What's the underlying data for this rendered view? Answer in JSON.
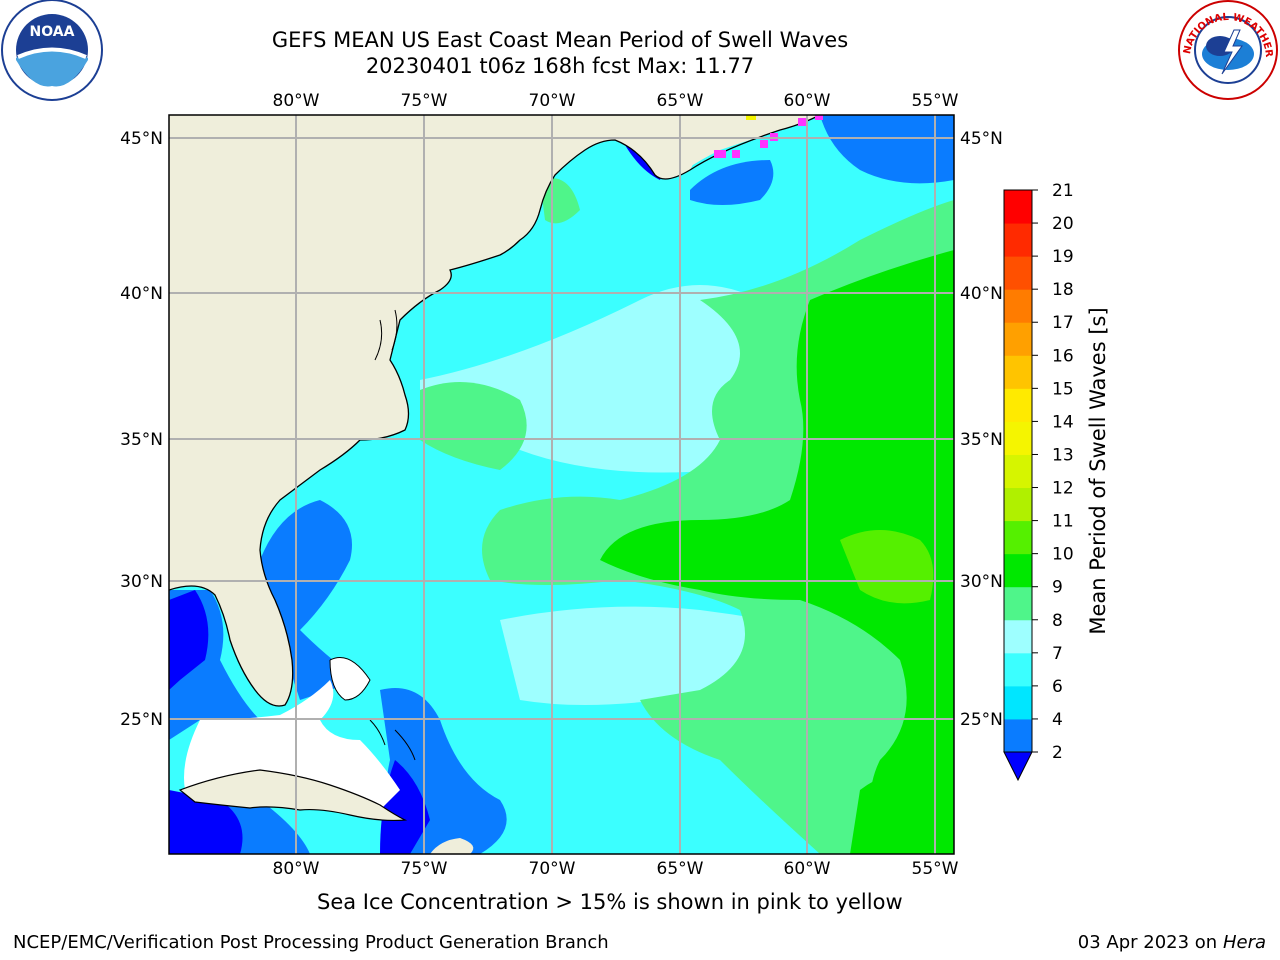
{
  "header": {
    "title_line1": "GEFS MEAN US East Coast Mean Period of Swell Waves",
    "title_line2": "20230401 t06z 168h fcst   Max: 11.77"
  },
  "map": {
    "lon_labels_top": [
      "80°W",
      "75°W",
      "70°W",
      "65°W",
      "60°W",
      "55°W"
    ],
    "lon_labels_bottom": [
      "80°W",
      "75°W",
      "70°W",
      "65°W",
      "60°W",
      "55°W"
    ],
    "lat_labels_left": [
      "45°N",
      "40°N",
      "35°N",
      "30°N",
      "25°N"
    ],
    "lat_labels_right": [
      "45°N",
      "40°N",
      "35°N",
      "30°N",
      "25°N"
    ],
    "colors": {
      "land": "#efeedb",
      "no_data": "#ffffff",
      "grid": "#b0b0b0"
    }
  },
  "colorbar": {
    "label": "Mean Period of Swell Waves [s]",
    "ticks": [
      "2",
      "4",
      "6",
      "7",
      "8",
      "9",
      "10",
      "11",
      "12",
      "13",
      "14",
      "15",
      "16",
      "17",
      "18",
      "19",
      "20",
      "21"
    ],
    "colors": [
      "#0a7cff",
      "#00e6ff",
      "#3bffff",
      "#9effff",
      "#4ff58a",
      "#00e800",
      "#55f000",
      "#b0f000",
      "#d6f500",
      "#f5f500",
      "#ffea00",
      "#ffc400",
      "#ffa000",
      "#ff7c00",
      "#ff5000",
      "#ff2a00",
      "#ff0000"
    ],
    "under_color": "#0000ff"
  },
  "footer": {
    "subtitle": "Sea Ice Concentration > 15% is shown in pink to yellow",
    "left": "NCEP/EMC/Verification Post Processing Product Generation Branch",
    "right_date": "03 Apr 2023 on ",
    "right_host": "Hera"
  },
  "logos": {
    "noaa_text": "NOAA",
    "nws_text": "NATIONAL WEATHER SERVICE"
  }
}
